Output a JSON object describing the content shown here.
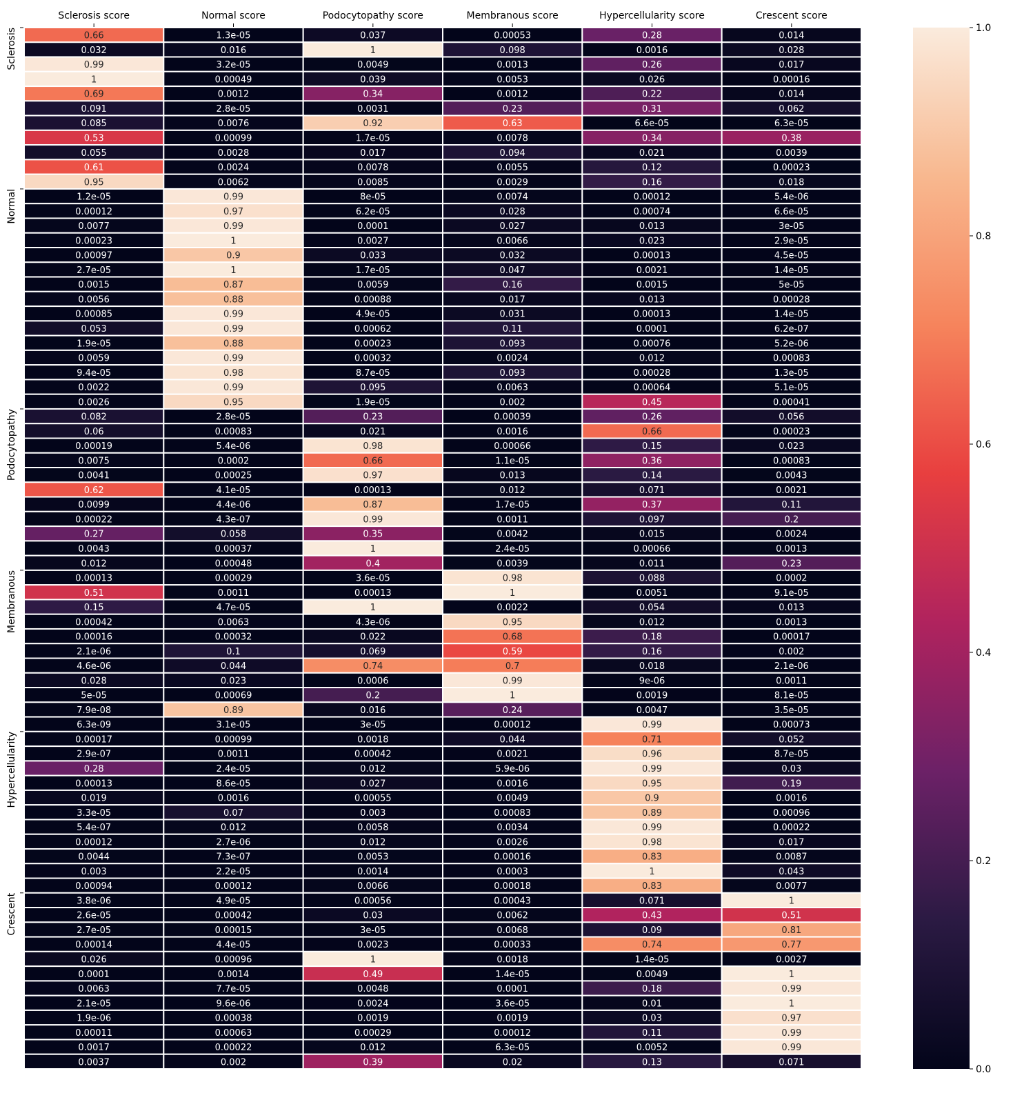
{
  "chart_data": {
    "type": "heatmap",
    "title": "",
    "xlabel": "",
    "ylabel": "",
    "columns": [
      "Sclerosis score",
      "Normal score",
      "Podocytopathy score",
      "Membranous score",
      "Hypercellularity score",
      "Crescent score"
    ],
    "row_group_labels": [
      {
        "label": "Sclerosis",
        "row_index": 0
      },
      {
        "label": "Normal",
        "row_index": 11
      },
      {
        "label": "Podocytopathy",
        "row_index": 26
      },
      {
        "label": "Membranous",
        "row_index": 37
      },
      {
        "label": "Hypercellularity",
        "row_index": 48
      },
      {
        "label": "Crescent",
        "row_index": 59
      }
    ],
    "cells": [
      [
        "0.66",
        "1.3e-05",
        "0.037",
        "0.00053",
        "0.28",
        "0.014"
      ],
      [
        "0.032",
        "0.016",
        "1",
        "0.098",
        "0.0016",
        "0.028"
      ],
      [
        "0.99",
        "3.2e-05",
        "0.0049",
        "0.0013",
        "0.26",
        "0.017"
      ],
      [
        "1",
        "0.00049",
        "0.039",
        "0.0053",
        "0.026",
        "0.00016"
      ],
      [
        "0.69",
        "0.0012",
        "0.34",
        "0.0012",
        "0.22",
        "0.014"
      ],
      [
        "0.091",
        "2.8e-05",
        "0.0031",
        "0.23",
        "0.31",
        "0.062"
      ],
      [
        "0.085",
        "0.0076",
        "0.92",
        "0.63",
        "6.6e-05",
        "6.3e-05"
      ],
      [
        "0.53",
        "0.00099",
        "1.7e-05",
        "0.0078",
        "0.34",
        "0.38"
      ],
      [
        "0.055",
        "0.0028",
        "0.017",
        "0.094",
        "0.021",
        "0.0039"
      ],
      [
        "0.61",
        "0.0024",
        "0.0078",
        "0.0055",
        "0.12",
        "0.00023"
      ],
      [
        "0.95",
        "0.0062",
        "0.0085",
        "0.0029",
        "0.16",
        "0.018"
      ],
      [
        "1.2e-05",
        "0.99",
        "8e-05",
        "0.0074",
        "0.00012",
        "5.4e-06"
      ],
      [
        "0.00012",
        "0.97",
        "6.2e-05",
        "0.028",
        "0.00074",
        "6.6e-05"
      ],
      [
        "0.0077",
        "0.99",
        "0.0001",
        "0.027",
        "0.013",
        "3e-05"
      ],
      [
        "0.00023",
        "1",
        "0.0027",
        "0.0066",
        "0.023",
        "2.9e-05"
      ],
      [
        "0.00097",
        "0.9",
        "0.033",
        "0.032",
        "0.00013",
        "4.5e-05"
      ],
      [
        "2.7e-05",
        "1",
        "1.7e-05",
        "0.047",
        "0.0021",
        "1.4e-05"
      ],
      [
        "0.0015",
        "0.87",
        "0.0059",
        "0.16",
        "0.0015",
        "5e-05"
      ],
      [
        "0.0056",
        "0.88",
        "0.00088",
        "0.017",
        "0.013",
        "0.00028"
      ],
      [
        "0.00085",
        "0.99",
        "4.9e-05",
        "0.031",
        "0.00013",
        "1.4e-05"
      ],
      [
        "0.053",
        "0.99",
        "0.00062",
        "0.11",
        "0.0001",
        "6.2e-07"
      ],
      [
        "1.9e-05",
        "0.88",
        "0.00023",
        "0.093",
        "0.00076",
        "5.2e-06"
      ],
      [
        "0.0059",
        "0.99",
        "0.00032",
        "0.0024",
        "0.012",
        "0.00083"
      ],
      [
        "9.4e-05",
        "0.98",
        "8.7e-05",
        "0.093",
        "0.00028",
        "1.3e-05"
      ],
      [
        "0.0022",
        "0.99",
        "0.095",
        "0.0063",
        "0.00064",
        "5.1e-05"
      ],
      [
        "0.0026",
        "0.95",
        "1.9e-05",
        "0.002",
        "0.45",
        "0.00041"
      ],
      [
        "0.082",
        "2.8e-05",
        "0.23",
        "0.00039",
        "0.26",
        "0.056"
      ],
      [
        "0.06",
        "0.00083",
        "0.021",
        "0.0016",
        "0.66",
        "0.00023"
      ],
      [
        "0.00019",
        "5.4e-06",
        "0.98",
        "0.00066",
        "0.15",
        "0.023"
      ],
      [
        "0.0075",
        "0.0002",
        "0.66",
        "1.1e-05",
        "0.36",
        "0.00083"
      ],
      [
        "0.0041",
        "0.00025",
        "0.97",
        "0.013",
        "0.14",
        "0.0043"
      ],
      [
        "0.62",
        "4.1e-05",
        "0.00013",
        "0.012",
        "0.071",
        "0.0021"
      ],
      [
        "0.0099",
        "4.4e-06",
        "0.87",
        "1.7e-05",
        "0.37",
        "0.11"
      ],
      [
        "0.00022",
        "4.3e-07",
        "0.99",
        "0.0011",
        "0.097",
        "0.2"
      ],
      [
        "0.27",
        "0.058",
        "0.35",
        "0.0042",
        "0.015",
        "0.0024"
      ],
      [
        "0.0043",
        "0.00037",
        "1",
        "2.4e-05",
        "0.00066",
        "0.0013"
      ],
      [
        "0.012",
        "0.00048",
        "0.4",
        "0.0039",
        "0.011",
        "0.23"
      ],
      [
        "0.00013",
        "0.00029",
        "3.6e-05",
        "0.98",
        "0.088",
        "0.0002"
      ],
      [
        "0.51",
        "0.0011",
        "0.00013",
        "1",
        "0.0051",
        "9.1e-05"
      ],
      [
        "0.15",
        "4.7e-05",
        "1",
        "0.0022",
        "0.054",
        "0.013"
      ],
      [
        "0.00042",
        "0.0063",
        "4.3e-06",
        "0.95",
        "0.012",
        "0.0013"
      ],
      [
        "0.00016",
        "0.00032",
        "0.022",
        "0.68",
        "0.18",
        "0.00017"
      ],
      [
        "2.1e-06",
        "0.1",
        "0.069",
        "0.59",
        "0.16",
        "0.002"
      ],
      [
        "4.6e-06",
        "0.044",
        "0.74",
        "0.7",
        "0.018",
        "2.1e-06"
      ],
      [
        "0.028",
        "0.023",
        "0.0006",
        "0.99",
        "9e-06",
        "0.0011"
      ],
      [
        "5e-05",
        "0.00069",
        "0.2",
        "1",
        "0.0019",
        "8.1e-05"
      ],
      [
        "7.9e-08",
        "0.89",
        "0.016",
        "0.24",
        "0.0047",
        "3.5e-05"
      ],
      [
        "6.3e-09",
        "3.1e-05",
        "3e-05",
        "0.00012",
        "0.99",
        "0.00073"
      ],
      [
        "0.00017",
        "0.00099",
        "0.0018",
        "0.044",
        "0.71",
        "0.052"
      ],
      [
        "2.9e-07",
        "0.0011",
        "0.00042",
        "0.0021",
        "0.96",
        "8.7e-05"
      ],
      [
        "0.28",
        "2.4e-05",
        "0.012",
        "5.9e-06",
        "0.99",
        "0.03"
      ],
      [
        "0.00013",
        "8.6e-05",
        "0.027",
        "0.0016",
        "0.95",
        "0.19"
      ],
      [
        "0.019",
        "0.0016",
        "0.00055",
        "0.0049",
        "0.9",
        "0.0016"
      ],
      [
        "3.3e-05",
        "0.07",
        "0.003",
        "0.00083",
        "0.89",
        "0.00096"
      ],
      [
        "5.4e-07",
        "0.012",
        "0.0058",
        "0.0034",
        "0.99",
        "0.00022"
      ],
      [
        "0.00012",
        "2.7e-06",
        "0.012",
        "0.0026",
        "0.98",
        "0.017"
      ],
      [
        "0.0044",
        "7.3e-07",
        "0.0053",
        "0.00016",
        "0.83",
        "0.0087"
      ],
      [
        "0.003",
        "2.2e-05",
        "0.0014",
        "0.0003",
        "1",
        "0.043"
      ],
      [
        "0.00094",
        "0.00012",
        "0.0066",
        "0.00018",
        "0.83",
        "0.0077"
      ],
      [
        "3.8e-06",
        "4.9e-05",
        "0.00056",
        "0.00043",
        "0.071",
        "1"
      ],
      [
        "2.6e-05",
        "0.00042",
        "0.03",
        "0.0062",
        "0.43",
        "0.51"
      ],
      [
        "2.7e-05",
        "0.00015",
        "3e-05",
        "0.0068",
        "0.09",
        "0.81"
      ],
      [
        "0.00014",
        "4.4e-05",
        "0.0023",
        "0.00033",
        "0.74",
        "0.77"
      ],
      [
        "0.026",
        "0.00096",
        "1",
        "0.0018",
        "1.4e-05",
        "0.0027"
      ],
      [
        "0.0001",
        "0.0014",
        "0.49",
        "1.4e-05",
        "0.0049",
        "1"
      ],
      [
        "0.0063",
        "7.7e-05",
        "0.0048",
        "0.0001",
        "0.18",
        "0.99"
      ],
      [
        "2.1e-05",
        "9.6e-06",
        "0.0024",
        "3.6e-05",
        "0.01",
        "1"
      ],
      [
        "1.9e-06",
        "0.00038",
        "0.0019",
        "0.0019",
        "0.03",
        "0.97"
      ],
      [
        "0.00011",
        "0.00063",
        "0.00029",
        "0.00012",
        "0.11",
        "0.99"
      ],
      [
        "0.0017",
        "0.00022",
        "0.012",
        "6.3e-05",
        "0.0052",
        "0.99"
      ],
      [
        "0.0037",
        "0.002",
        "0.39",
        "0.02",
        "0.13",
        "0.071"
      ]
    ],
    "colorbar": {
      "range": [
        0,
        1
      ],
      "ticks": [
        "0.0",
        "0.2",
        "0.4",
        "0.6",
        "0.8",
        "1.0"
      ],
      "colormap": [
        "#03051a",
        "#2b1a43",
        "#6c2167",
        "#b0235e",
        "#e83f3f",
        "#f6845c",
        "#f8b88f",
        "#faebdd"
      ]
    }
  }
}
